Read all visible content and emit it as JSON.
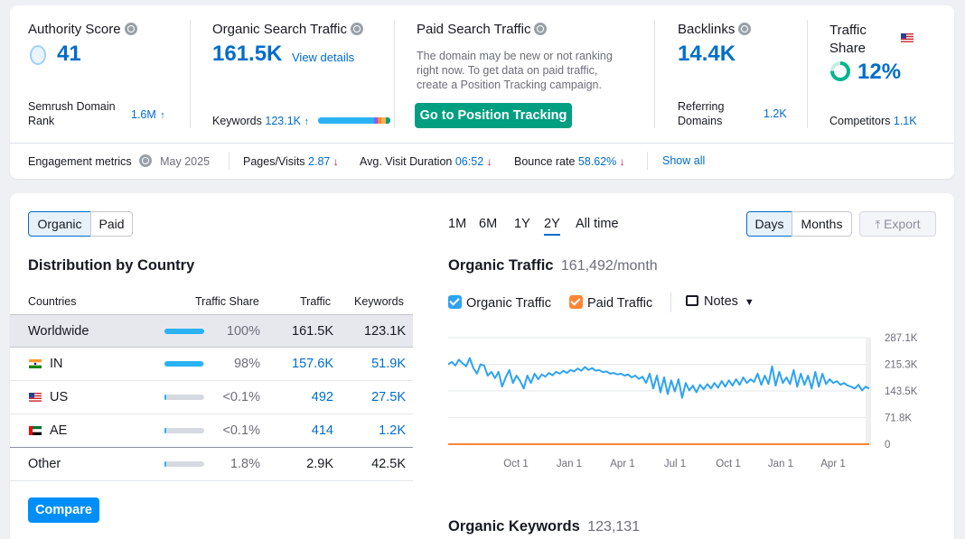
{
  "top_metrics": {
    "authority": {
      "label": "Authority Score",
      "value": "41",
      "sub_label": "Semrush Domain Rank",
      "sub_value": "1.6M",
      "sub_arrow": "↑"
    },
    "organic": {
      "label": "Organic Search Traffic",
      "value": "161.5K",
      "link": "View details",
      "keywords_label": "Keywords",
      "keywords_value": "123.1K",
      "keywords_arrow": "↑"
    },
    "paid": {
      "label": "Paid Search Traffic",
      "message": [
        "The domain may be new or not ranking",
        "right now. To get data on paid traffic,",
        "create a Position Tracking campaign."
      ],
      "button": "Go to Position Tracking"
    },
    "backlinks": {
      "label": "Backlinks",
      "value": "14.4K",
      "sub_label_1": "Referring",
      "sub_label_2": "Domains",
      "sub_value": "1.2K"
    },
    "traffic_share": {
      "label_1": "Traffic",
      "label_2": "Share",
      "value": "12%",
      "competitors_label": "Competitors",
      "competitors_value": "1.1K",
      "ring_fraction": 0.12
    }
  },
  "engagement": {
    "label": "Engagement metrics",
    "date": "May 2025",
    "pages_label": "Pages/Visits",
    "pages_value": "2.87",
    "pages_arrow": "↓",
    "duration_label": "Avg. Visit Duration",
    "duration_value": "06:52",
    "duration_arrow": "↓",
    "bounce_label": "Bounce rate",
    "bounce_value": "58.62%",
    "bounce_arrow": "↓",
    "show_all": "Show all"
  },
  "toggle": {
    "organic": "Organic",
    "paid": "Paid"
  },
  "distribution": {
    "title": "Distribution by Country",
    "headers": {
      "countries": "Countries",
      "share": "Traffic Share",
      "traffic": "Traffic",
      "keywords": "Keywords"
    },
    "rows": [
      {
        "name": "Worldwide",
        "share": "100%",
        "traffic": "161.5K",
        "keywords": "123.1K",
        "fill": 1.0
      },
      {
        "name": "IN",
        "share": "98%",
        "traffic": "157.6K",
        "keywords": "51.9K",
        "fill": 0.98
      },
      {
        "name": "US",
        "share": "<0.1%",
        "traffic": "492",
        "keywords": "27.5K",
        "fill": 0.001
      },
      {
        "name": "AE",
        "share": "<0.1%",
        "traffic": "414",
        "keywords": "1.2K",
        "fill": 0.001
      },
      {
        "name": "Other",
        "share": "1.8%",
        "traffic": "2.9K",
        "keywords": "42.5K",
        "fill": 0.018
      }
    ],
    "compare_button": "Compare"
  },
  "ranges": {
    "r1": "1M",
    "r2": "6M",
    "r3": "1Y",
    "r4": "2Y",
    "r5": "All time",
    "active": "2Y"
  },
  "granularity": {
    "days": "Days",
    "months": "Months",
    "active": "Days"
  },
  "export_label": "Export",
  "organic_traffic_chart": {
    "title": "Organic Traffic",
    "subtitle": "161,492/month",
    "legend": {
      "organic": "Organic Traffic",
      "paid": "Paid Traffic",
      "notes": "Notes"
    },
    "colors": {
      "organic": "#2ea3f2",
      "paid": "#ff8534",
      "accent": "#006dca",
      "green": "#009f81"
    }
  },
  "chart_data": {
    "type": "line",
    "title": "Organic Traffic",
    "x_ticks": [
      "Oct 1",
      "Jan 1",
      "Apr 1",
      "Jul 1",
      "Oct 1",
      "Jan 1",
      "Apr 1"
    ],
    "y_ticks": [
      "287.1K",
      "215.3K",
      "143.5K",
      "71.8K",
      "0"
    ],
    "ylim": [
      0,
      287100
    ],
    "series": [
      {
        "name": "Organic Traffic",
        "values": [
          215000,
          222000,
          212000,
          228000,
          218000,
          210000,
          232000,
          205000,
          190000,
          215000,
          212000,
          185000,
          195000,
          178000,
          195000,
          155000,
          180000,
          200000,
          165000,
          185000,
          170000,
          150000,
          185000,
          165000,
          190000,
          175000,
          188000,
          182000,
          192000,
          186000,
          195000,
          190000,
          198000,
          192000,
          200000,
          196000,
          204000,
          198000,
          208000,
          200000,
          205000,
          198000,
          200000,
          194000,
          196000,
          190000,
          192000,
          188000,
          190000,
          185000,
          188000,
          180000,
          185000,
          176000,
          182000,
          165000,
          190000,
          150000,
          185000,
          140000,
          180000,
          135000,
          172000,
          142000,
          175000,
          125000,
          165000,
          145000,
          158000,
          140000,
          160000,
          148000,
          162000,
          150000,
          165000,
          152000,
          170000,
          155000,
          172000,
          158000,
          175000,
          160000,
          180000,
          165000,
          175000,
          168000,
          190000,
          160000,
          185000,
          162000,
          210000,
          158000,
          195000,
          165000,
          180000,
          162000,
          200000,
          155000,
          190000,
          160000,
          185000,
          150000,
          195000,
          155000,
          190000,
          162000,
          175000,
          165000,
          170000,
          160000,
          165000,
          158000,
          155000,
          150000,
          160000,
          145000,
          155000,
          150000
        ],
        "color": "#2ea3f2"
      },
      {
        "name": "Paid Traffic",
        "values": [
          0,
          0
        ],
        "color": "#ff8534"
      }
    ]
  },
  "keywords_section": {
    "title": "Organic Keywords",
    "value": "123,131"
  }
}
